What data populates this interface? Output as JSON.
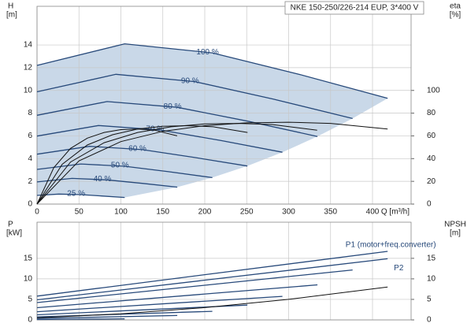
{
  "chart_data": [
    {
      "type": "line",
      "title": "NKE 150-250/226-214 EUP, 3*400 V",
      "ylabel": "H",
      "yunit": "[m]",
      "y2label": "eta",
      "y2unit": "[%]",
      "xlabel": "Q [m³/h]",
      "xlim": [
        0,
        446
      ],
      "xticks": [
        0,
        50,
        100,
        150,
        200,
        250,
        300,
        350,
        400
      ],
      "xtick_labels": true,
      "ylim": [
        0,
        17.4
      ],
      "yticks": [
        0,
        2,
        4,
        6,
        8,
        10,
        12,
        14
      ],
      "y2lim": [
        0,
        174
      ],
      "y2ticks": [
        0,
        20,
        40,
        60,
        80,
        100
      ],
      "grid": true,
      "fill": "#c9d8e8",
      "series": [
        {
          "name": "100 %",
          "color": "#27497a",
          "x": [
            0,
            104.5,
            209,
            313.5,
            418
          ],
          "values": [
            12.2,
            14.1,
            13.3,
            11.4,
            9.3
          ]
        },
        {
          "name": "90 %",
          "color": "#27497a",
          "x": [
            0,
            94.1,
            188.1,
            282.2,
            376.2
          ],
          "values": [
            9.88,
            11.42,
            10.77,
            9.23,
            7.53
          ]
        },
        {
          "name": "80 %",
          "color": "#27497a",
          "x": [
            0,
            83.6,
            167.2,
            250.8,
            334.4
          ],
          "values": [
            7.81,
            9.02,
            8.51,
            7.3,
            5.95
          ]
        },
        {
          "name": "70 %",
          "color": "#27497a",
          "x": [
            0,
            73.2,
            146.3,
            219.5,
            292.6
          ],
          "values": [
            5.98,
            6.91,
            6.52,
            5.59,
            4.56
          ]
        },
        {
          "name": "60 %",
          "color": "#27497a",
          "x": [
            0,
            62.7,
            125.4,
            188.1,
            250.8
          ],
          "values": [
            4.39,
            5.08,
            4.79,
            4.1,
            3.35
          ]
        },
        {
          "name": "50 %",
          "color": "#27497a",
          "x": [
            0,
            52.3,
            104.5,
            156.8,
            209
          ],
          "values": [
            3.05,
            3.53,
            3.33,
            2.85,
            2.33
          ]
        },
        {
          "name": "40 %",
          "color": "#27497a",
          "x": [
            0,
            41.8,
            83.6,
            125.4,
            167.2
          ],
          "values": [
            1.95,
            2.26,
            2.13,
            1.82,
            1.49
          ]
        },
        {
          "name": "25 %",
          "color": "#27497a",
          "x": [
            0,
            26.1,
            52.3,
            78.4,
            104.5
          ],
          "values": [
            0.76,
            0.88,
            0.83,
            0.71,
            0.58
          ]
        },
        {
          "axis": "y2",
          "color": "#111111",
          "x": [
            0,
            50,
            100,
            150,
            200,
            250,
            300,
            350,
            418
          ],
          "values": [
            0,
            38,
            55,
            64,
            69,
            71.5,
            72,
            71,
            66
          ]
        },
        {
          "axis": "y2",
          "color": "#111111",
          "x": [
            0,
            40,
            80,
            120,
            160,
            200,
            240,
            280,
            334
          ],
          "values": [
            0,
            37,
            54,
            63,
            68,
            70.5,
            71,
            70,
            65
          ]
        },
        {
          "axis": "y2",
          "color": "#111111",
          "x": [
            0,
            30,
            60,
            90,
            120,
            150,
            180,
            210,
            251
          ],
          "values": [
            0,
            35,
            52,
            61,
            66,
            68.5,
            69,
            68,
            63
          ]
        },
        {
          "axis": "y2",
          "color": "#111111",
          "x": [
            0,
            20,
            40,
            60,
            80,
            100,
            120,
            140,
            167
          ],
          "values": [
            0,
            32,
            49,
            58,
            63,
            65.5,
            66,
            65,
            60
          ]
        }
      ]
    },
    {
      "type": "line",
      "ylabel": "P",
      "yunit": "[kW]",
      "y2label": "NPSH",
      "y2unit": "[m]",
      "xlim": [
        0,
        446
      ],
      "xticks": [
        0,
        50,
        100,
        150,
        200,
        250,
        300,
        350,
        400
      ],
      "xtick_labels": false,
      "ylim": [
        0,
        23.8
      ],
      "yticks": [
        0,
        5,
        10,
        15
      ],
      "y2lim": [
        0,
        23.8
      ],
      "y2ticks": [
        0,
        5,
        10,
        15
      ],
      "grid": true,
      "series": [
        {
          "name": "P1 (motor+freq.converter)",
          "color": "#27497a",
          "x": [
            0,
            418
          ],
          "values": [
            5.8,
            16.7
          ]
        },
        {
          "color": "#27497a",
          "x": [
            0,
            376.2
          ],
          "values": [
            4.23,
            12.17
          ]
        },
        {
          "color": "#27497a",
          "x": [
            0,
            334.4
          ],
          "values": [
            2.97,
            8.55
          ]
        },
        {
          "color": "#27497a",
          "x": [
            0,
            292.6
          ],
          "values": [
            1.99,
            5.73
          ]
        },
        {
          "color": "#27497a",
          "x": [
            0,
            250.8
          ],
          "values": [
            1.25,
            3.61
          ]
        },
        {
          "color": "#27497a",
          "x": [
            0,
            209
          ],
          "values": [
            0.73,
            2.09
          ]
        },
        {
          "color": "#27497a",
          "x": [
            0,
            167.2
          ],
          "values": [
            0.37,
            1.07
          ]
        },
        {
          "color": "#27497a",
          "x": [
            0,
            104.5
          ],
          "values": [
            0.09,
            0.26
          ]
        },
        {
          "name": "P2",
          "color": "#27497a",
          "x": [
            0,
            418
          ],
          "values": [
            4.9,
            14.9
          ]
        },
        {
          "axis": "y2",
          "color": "#111111",
          "x": [
            0,
            100,
            200,
            300,
            418
          ],
          "values": [
            0.5,
            1.5,
            3,
            5,
            8
          ]
        }
      ]
    }
  ]
}
